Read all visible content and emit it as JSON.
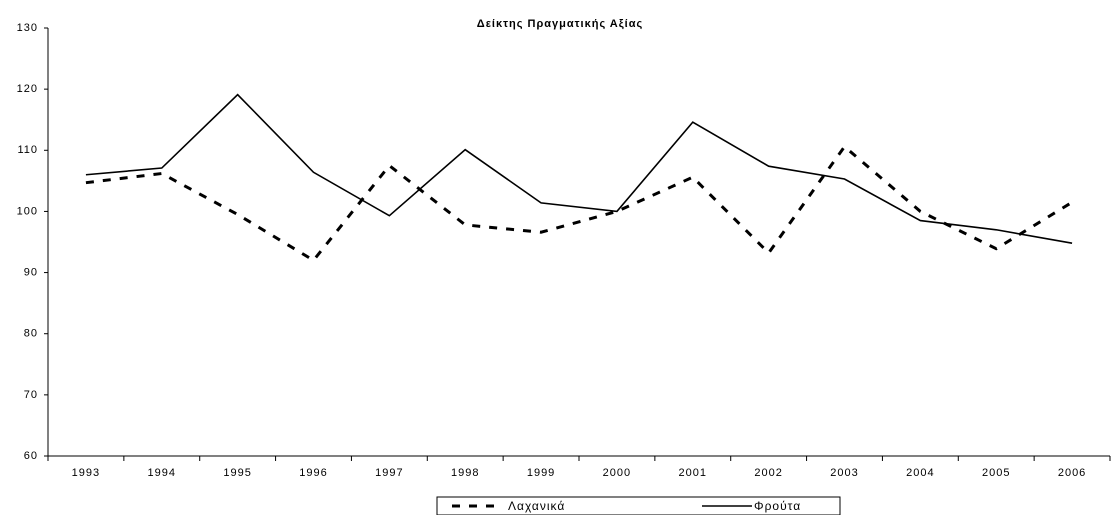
{
  "chart_data": {
    "type": "line",
    "title": "Δείκτης Πραγματικής Αξίας",
    "categories": [
      "1993",
      "1994",
      "1995",
      "1996",
      "1997",
      "1998",
      "1999",
      "2000",
      "2001",
      "2002",
      "2003",
      "2004",
      "2005",
      "2006"
    ],
    "series": [
      {
        "name": "Λαχανικά",
        "color": "#000000",
        "dashed": true,
        "values": [
          104.7,
          106.2,
          99.5,
          92.0,
          107.5,
          97.8,
          96.6,
          100.0,
          105.6,
          93.2,
          110.6,
          100.0,
          93.9,
          101.5
        ]
      },
      {
        "name": "Φρούτα",
        "color": "#000000",
        "dashed": false,
        "values": [
          106.0,
          107.1,
          119.1,
          106.4,
          99.3,
          110.1,
          101.4,
          100.0,
          114.6,
          107.4,
          105.3,
          98.5,
          97.0,
          94.8
        ]
      }
    ],
    "ylim": [
      60,
      130
    ],
    "yticks": [
      60,
      70,
      80,
      90,
      100,
      110,
      120,
      130
    ],
    "grid": false
  }
}
